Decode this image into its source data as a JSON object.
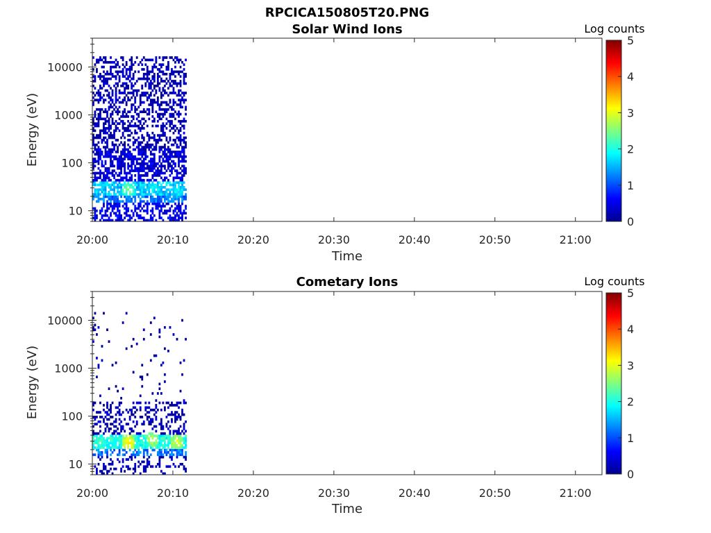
{
  "figure": {
    "title": "RPCICA150805T20.PNG"
  },
  "colors": {
    "colormap": [
      "#00008f",
      "#0000ff",
      "#00ffff",
      "#ffff00",
      "#ff0000",
      "#800000"
    ],
    "axis": "#262626",
    "background": "#ffffff"
  },
  "chart_data": [
    {
      "type": "heatmap",
      "title": "Solar Wind Ions",
      "xlabel": "Time",
      "ylabel": "Energy (eV)",
      "yscale": "log",
      "ylim": [
        6,
        40000
      ],
      "xlim_minutes": [
        0,
        63.3
      ],
      "xticks": [
        "20:00",
        "20:10",
        "20:20",
        "20:30",
        "20:40",
        "20:50",
        "21:00"
      ],
      "yticks": [
        "10",
        "100",
        "1000",
        "10000"
      ],
      "colorbar": {
        "label": "Log counts",
        "range": [
          0,
          5
        ],
        "ticks": [
          "0",
          "1",
          "2",
          "3",
          "4",
          "5"
        ]
      },
      "data_coverage": {
        "start": "20:00",
        "end": "20:11.7"
      },
      "bands": [
        {
          "emin": 6,
          "emax": 15,
          "time_start": "20:00",
          "time_end": "20:11.7",
          "log_counts": 0.5,
          "density": 0.55
        },
        {
          "emin": 15,
          "emax": 22,
          "time_start": "20:00",
          "time_end": "20:11.7",
          "log_counts": 1.2,
          "density": 0.7
        },
        {
          "emin": 22,
          "emax": 40,
          "time_start": "20:00",
          "time_end": "20:11.7",
          "log_counts": 1.6,
          "density": 0.75
        },
        {
          "emin": 40,
          "emax": 200,
          "time_start": "20:00",
          "time_end": "20:11.7",
          "log_counts": 0.4,
          "density": 0.6
        },
        {
          "emin": 200,
          "emax": 8000,
          "time_start": "20:00",
          "time_end": "20:11.7",
          "log_counts": 0.2,
          "density": 0.45
        },
        {
          "emin": 8000,
          "emax": 16000,
          "time_start": "20:00",
          "time_end": "20:11.7",
          "log_counts": 0.2,
          "density": 0.35
        }
      ],
      "hotspots": [
        {
          "time": "20:01",
          "energy": 30,
          "log_counts": 1.8
        },
        {
          "time": "20:04.5",
          "energy": 28,
          "log_counts": 2.6
        },
        {
          "time": "20:07.5",
          "energy": 30,
          "log_counts": 2.0
        },
        {
          "time": "20:10.5",
          "energy": 26,
          "log_counts": 2.0
        }
      ]
    },
    {
      "type": "heatmap",
      "title": "Cometary Ions",
      "xlabel": "Time",
      "ylabel": "Energy (eV)",
      "yscale": "log",
      "ylim": [
        6,
        40000
      ],
      "xlim_minutes": [
        0,
        63.3
      ],
      "xticks": [
        "20:00",
        "20:10",
        "20:20",
        "20:30",
        "20:40",
        "20:50",
        "21:00"
      ],
      "yticks": [
        "10",
        "100",
        "1000",
        "10000"
      ],
      "colorbar": {
        "label": "Log counts",
        "range": [
          0,
          5
        ],
        "ticks": [
          "0",
          "1",
          "2",
          "3",
          "4",
          "5"
        ]
      },
      "data_coverage": {
        "start": "20:00",
        "end": "20:11.7"
      },
      "bands": [
        {
          "emin": 6,
          "emax": 15,
          "time_start": "20:00",
          "time_end": "20:11.7",
          "log_counts": 0.2,
          "density": 0.2
        },
        {
          "emin": 15,
          "emax": 22,
          "time_start": "20:00",
          "time_end": "20:11.7",
          "log_counts": 1.2,
          "density": 0.55
        },
        {
          "emin": 22,
          "emax": 40,
          "time_start": "20:00",
          "time_end": "20:11.7",
          "log_counts": 2.0,
          "density": 0.8
        },
        {
          "emin": 40,
          "emax": 200,
          "time_start": "20:00",
          "time_end": "20:11.7",
          "log_counts": 0.2,
          "density": 0.3
        },
        {
          "emin": 200,
          "emax": 15000,
          "time_start": "20:00",
          "time_end": "20:11.7",
          "log_counts": 0.1,
          "density": 0.03
        }
      ],
      "hotspots": [
        {
          "time": "20:01",
          "energy": 30,
          "log_counts": 2.2
        },
        {
          "time": "20:04.5",
          "energy": 28,
          "log_counts": 3.3
        },
        {
          "time": "20:07.5",
          "energy": 33,
          "log_counts": 2.9
        },
        {
          "time": "20:10.5",
          "energy": 28,
          "log_counts": 3.0
        }
      ]
    }
  ]
}
